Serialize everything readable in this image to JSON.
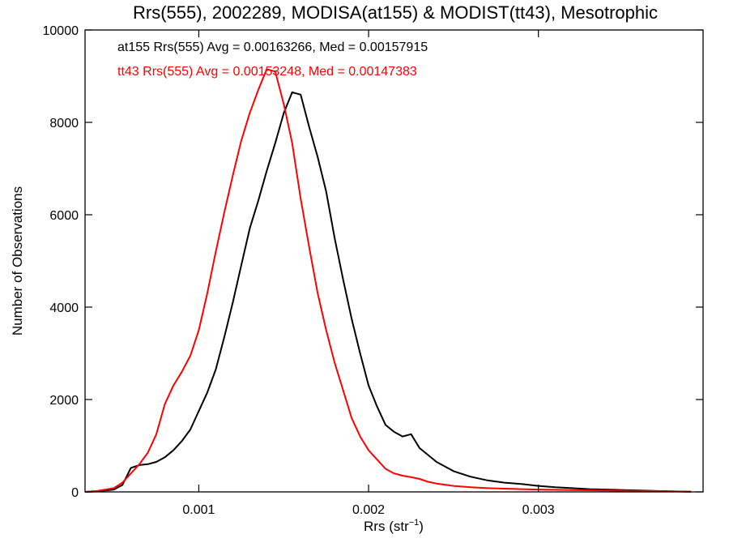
{
  "chart_data": {
    "type": "line",
    "title": "Rrs(555), 2002289, MODISA(at155) & MODIST(tt43), Mesotrophic",
    "xlabel_main": "Rrs (str",
    "xlabel_sup": "−1",
    "xlabel_end": ")",
    "ylabel": "Number of Observations",
    "xlim": [
      0.00033,
      0.00397
    ],
    "ylim": [
      0,
      10000
    ],
    "x_ticks": [
      0.001,
      0.002,
      0.003
    ],
    "x_tick_labels": [
      "0.001",
      "0.002",
      "0.003"
    ],
    "y_ticks": [
      0,
      2000,
      4000,
      6000,
      8000,
      10000
    ],
    "y_tick_labels": [
      "0",
      "2000",
      "4000",
      "6000",
      "8000",
      "10000"
    ],
    "grid": false,
    "legend": "top-left",
    "series": [
      {
        "name": "at155",
        "label": "at155 Rrs(555) Avg = 0.00163266, Med = 0.00157915",
        "color": "#000000",
        "x": [
          0.00033,
          0.0004,
          0.0005,
          0.00055,
          0.0006,
          0.00065,
          0.0007,
          0.00075,
          0.0008,
          0.00085,
          0.0009,
          0.00095,
          0.001,
          0.00105,
          0.0011,
          0.00115,
          0.0012,
          0.00125,
          0.0013,
          0.00135,
          0.0014,
          0.00145,
          0.0015,
          0.00155,
          0.0016,
          0.00165,
          0.0017,
          0.00175,
          0.0018,
          0.00185,
          0.0019,
          0.00195,
          0.002,
          0.00205,
          0.0021,
          0.00215,
          0.0022,
          0.00225,
          0.0023,
          0.00235,
          0.0024,
          0.0025,
          0.0026,
          0.0027,
          0.0028,
          0.0029,
          0.003,
          0.0031,
          0.0032,
          0.0033,
          0.0034,
          0.0035,
          0.0036,
          0.0037,
          0.0038,
          0.0039
        ],
        "y": [
          0,
          10,
          50,
          150,
          520,
          580,
          600,
          650,
          750,
          900,
          1100,
          1350,
          1750,
          2150,
          2650,
          3350,
          4100,
          4900,
          5700,
          6300,
          6950,
          7550,
          8200,
          8650,
          8600,
          7900,
          7250,
          6500,
          5500,
          4600,
          3750,
          3000,
          2300,
          1850,
          1450,
          1300,
          1200,
          1250,
          950,
          800,
          650,
          450,
          330,
          250,
          200,
          170,
          130,
          100,
          80,
          60,
          50,
          40,
          30,
          20,
          10,
          5
        ]
      },
      {
        "name": "tt43",
        "label": "tt43 Rrs(555) Avg = 0.00153248, Med = 0.00147383",
        "color": "#ff0000",
        "x": [
          0.00033,
          0.0004,
          0.0005,
          0.00055,
          0.0006,
          0.00065,
          0.0007,
          0.00075,
          0.0008,
          0.00085,
          0.0009,
          0.00095,
          0.001,
          0.00105,
          0.0011,
          0.00115,
          0.0012,
          0.00125,
          0.0013,
          0.00135,
          0.0014,
          0.00145,
          0.0015,
          0.00155,
          0.0016,
          0.00165,
          0.0017,
          0.00175,
          0.0018,
          0.00185,
          0.0019,
          0.00195,
          0.002,
          0.00205,
          0.0021,
          0.00215,
          0.0022,
          0.00225,
          0.0023,
          0.00235,
          0.0024,
          0.0025,
          0.0026,
          0.0027,
          0.0028,
          0.0029,
          0.003,
          0.0031,
          0.0032,
          0.0033,
          0.0034,
          0.0035,
          0.0036,
          0.0037,
          0.0038,
          0.0039
        ],
        "y": [
          0,
          20,
          80,
          200,
          400,
          600,
          850,
          1250,
          1900,
          2300,
          2600,
          2950,
          3500,
          4300,
          5200,
          6050,
          6850,
          7600,
          8200,
          8700,
          9150,
          9100,
          8400,
          7550,
          6350,
          5300,
          4300,
          3500,
          2800,
          2200,
          1600,
          1200,
          900,
          700,
          500,
          400,
          350,
          320,
          280,
          220,
          180,
          130,
          100,
          80,
          70,
          60,
          50,
          45,
          40,
          35,
          30,
          25,
          20,
          15,
          10,
          5
        ]
      }
    ]
  }
}
